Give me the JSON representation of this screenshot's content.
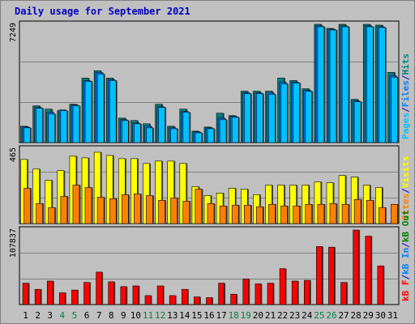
{
  "title": "Daily usage for September 2021",
  "chart_data": [
    {
      "type": "bar",
      "categories": [
        "1",
        "2",
        "3",
        "4",
        "5",
        "6",
        "7",
        "8",
        "9",
        "10",
        "11",
        "12",
        "13",
        "14",
        "15",
        "16",
        "17",
        "18",
        "19",
        "20",
        "21",
        "22",
        "23",
        "24",
        "25",
        "26",
        "27",
        "28",
        "29",
        "30",
        "31"
      ],
      "weekend_days": [
        "4",
        "5",
        "11",
        "12",
        "18",
        "19",
        "25",
        "26"
      ],
      "y_max_label": "7249",
      "ylim": [
        0,
        7249
      ],
      "right_label": [
        "Pages",
        "/",
        "Files",
        "/",
        "Hits"
      ],
      "right_label_colors": [
        "#00c0ff",
        "#0000c0",
        "#0080ff",
        "#0000c0",
        "#008080"
      ],
      "series": [
        {
          "name": "Hits",
          "color": "#008080",
          "values": [
            1000,
            2250,
            2050,
            1950,
            2350,
            3950,
            4400,
            3950,
            1500,
            1350,
            1150,
            2350,
            1000,
            2050,
            700,
            950,
            1800,
            1650,
            3150,
            3150,
            3150,
            3950,
            3800,
            3300,
            7249,
            7000,
            7249,
            2650,
            7249,
            7200,
            4300
          ]
        },
        {
          "name": "Files",
          "color": "#0080ff",
          "values": [
            950,
            2150,
            1850,
            2000,
            2300,
            3800,
            4300,
            3850,
            1400,
            1200,
            1000,
            2200,
            900,
            1900,
            650,
            900,
            1500,
            1600,
            3050,
            3050,
            3050,
            3700,
            3700,
            3200,
            7150,
            6950,
            7150,
            2550,
            7150,
            7100,
            4100
          ]
        },
        {
          "name": "Pages",
          "color": "#00c0ff",
          "values": [
            900,
            2100,
            1750,
            1950,
            2250,
            3750,
            4200,
            3800,
            1350,
            1150,
            900,
            2150,
            850,
            1850,
            600,
            850,
            1400,
            1550,
            3000,
            3000,
            2950,
            3600,
            3650,
            3150,
            7100,
            6900,
            7100,
            2500,
            7100,
            7050,
            4000
          ]
        }
      ]
    },
    {
      "type": "bar",
      "categories": [
        "1",
        "2",
        "3",
        "4",
        "5",
        "6",
        "7",
        "8",
        "9",
        "10",
        "11",
        "12",
        "13",
        "14",
        "15",
        "16",
        "17",
        "18",
        "19",
        "20",
        "21",
        "22",
        "23",
        "24",
        "25",
        "26",
        "27",
        "28",
        "29",
        "30",
        "31"
      ],
      "y_max_label": "465",
      "ylim": [
        0,
        465
      ],
      "right_label": [
        "Sites",
        "/",
        "Visits"
      ],
      "right_label_colors": [
        "#ff8000",
        "#0000c0",
        "#ffff00"
      ],
      "series": [
        {
          "name": "Visits",
          "color": "#ffff00",
          "values": [
            400,
            340,
            270,
            330,
            420,
            410,
            445,
            425,
            405,
            405,
            375,
            390,
            390,
            375,
            230,
            175,
            190,
            220,
            215,
            180,
            240,
            240,
            240,
            240,
            260,
            255,
            300,
            290,
            240,
            225,
            0
          ]
        },
        {
          "name": "Sites",
          "color": "#ff8000",
          "values": [
            220,
            125,
            100,
            170,
            240,
            225,
            165,
            155,
            180,
            185,
            175,
            145,
            160,
            140,
            215,
            125,
            110,
            115,
            115,
            105,
            120,
            110,
            110,
            120,
            120,
            125,
            120,
            150,
            145,
            100,
            120
          ]
        }
      ]
    },
    {
      "type": "bar",
      "categories": [
        "1",
        "2",
        "3",
        "4",
        "5",
        "6",
        "7",
        "8",
        "9",
        "10",
        "11",
        "12",
        "13",
        "14",
        "15",
        "16",
        "17",
        "18",
        "19",
        "20",
        "21",
        "22",
        "23",
        "24",
        "25",
        "26",
        "27",
        "28",
        "29",
        "30",
        "31"
      ],
      "y_max_label": "107837",
      "ylim": [
        0,
        107837
      ],
      "right_label": [
        "kB F",
        "/",
        "kB In",
        "/",
        "kB Out"
      ],
      "right_label_colors": [
        "#ff0000",
        "#0000c0",
        "#0080ff",
        "#0000c0",
        "#008000"
      ],
      "series": [
        {
          "name": "kB F",
          "color": "#ff0000",
          "values": [
            31000,
            22000,
            34000,
            17000,
            21000,
            32000,
            47000,
            33000,
            26000,
            27000,
            13000,
            27000,
            13000,
            22000,
            11000,
            10000,
            31000,
            15000,
            37000,
            30000,
            31000,
            52000,
            34000,
            35000,
            84000,
            83000,
            32000,
            107837,
            99000,
            56000,
            0
          ]
        }
      ]
    }
  ]
}
